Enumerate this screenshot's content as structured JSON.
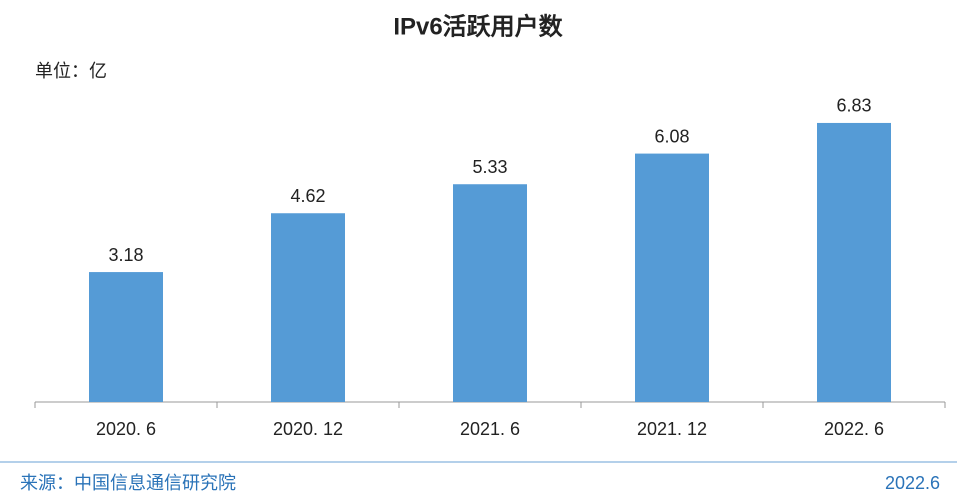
{
  "chart_data": {
    "type": "bar",
    "title": "IPv6活跃用户数",
    "unit_label": "单位：亿",
    "categories": [
      "2020. 6",
      "2020. 12",
      "2021. 6",
      "2021. 12",
      "2022. 6"
    ],
    "values": [
      3.18,
      4.62,
      5.33,
      6.08,
      6.83
    ],
    "color": "#559bd6",
    "ylim": [
      0,
      7
    ],
    "source": "来源：中国信息通信研究院",
    "date": "2022.6"
  }
}
